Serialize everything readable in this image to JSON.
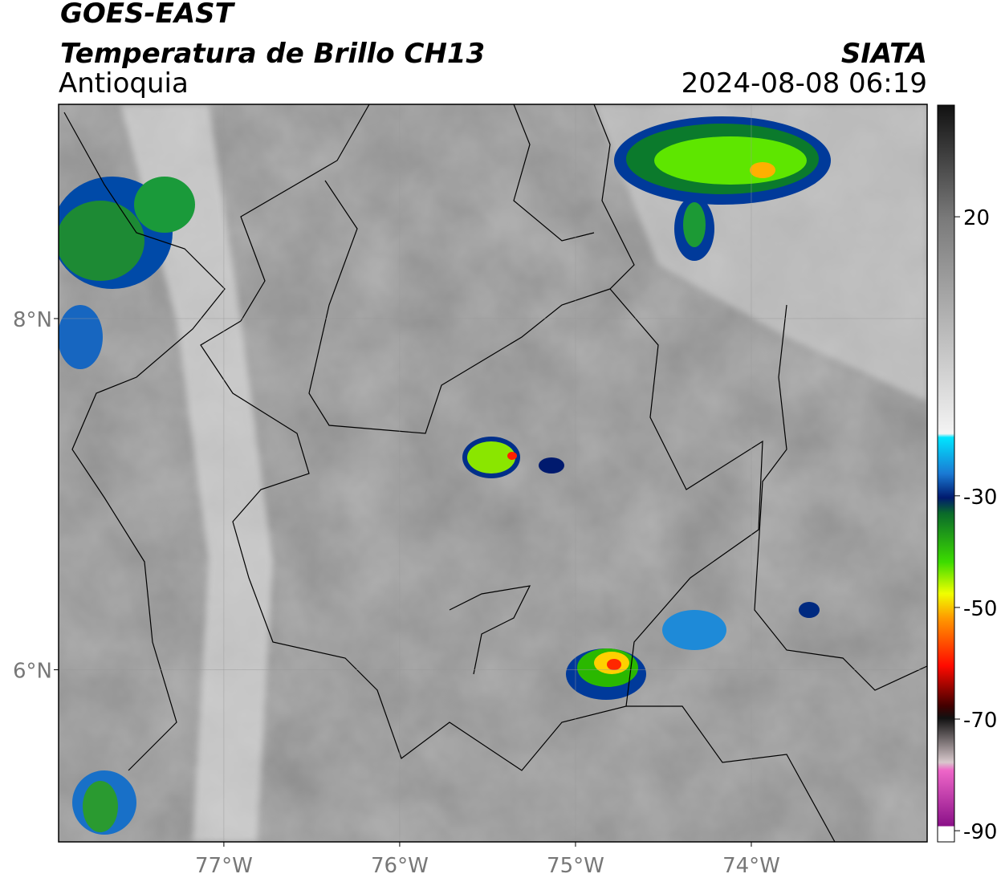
{
  "header": {
    "title": "GOES-EAST",
    "subtitle": "Temperatura de Brillo CH13",
    "region": "Antioquia",
    "brand": "SIATA",
    "timestamp": "2024-08-08 06:19"
  },
  "map": {
    "lonlim": [
      -77.94,
      -73.0
    ],
    "latlim": [
      5.02,
      9.22
    ],
    "lonticks": [
      {
        "value": -77,
        "label": "77°W"
      },
      {
        "value": -76,
        "label": "76°W"
      },
      {
        "value": -75,
        "label": "75°W"
      },
      {
        "value": -74,
        "label": "74°W"
      }
    ],
    "latticks": [
      {
        "value": 8,
        "label": "8°N"
      },
      {
        "value": 6,
        "label": "6°N"
      }
    ],
    "grid": true
  },
  "colorbar": {
    "range": [
      -92,
      40
    ],
    "ticks": [
      20,
      -30,
      -50,
      -70,
      -90
    ]
  }
}
